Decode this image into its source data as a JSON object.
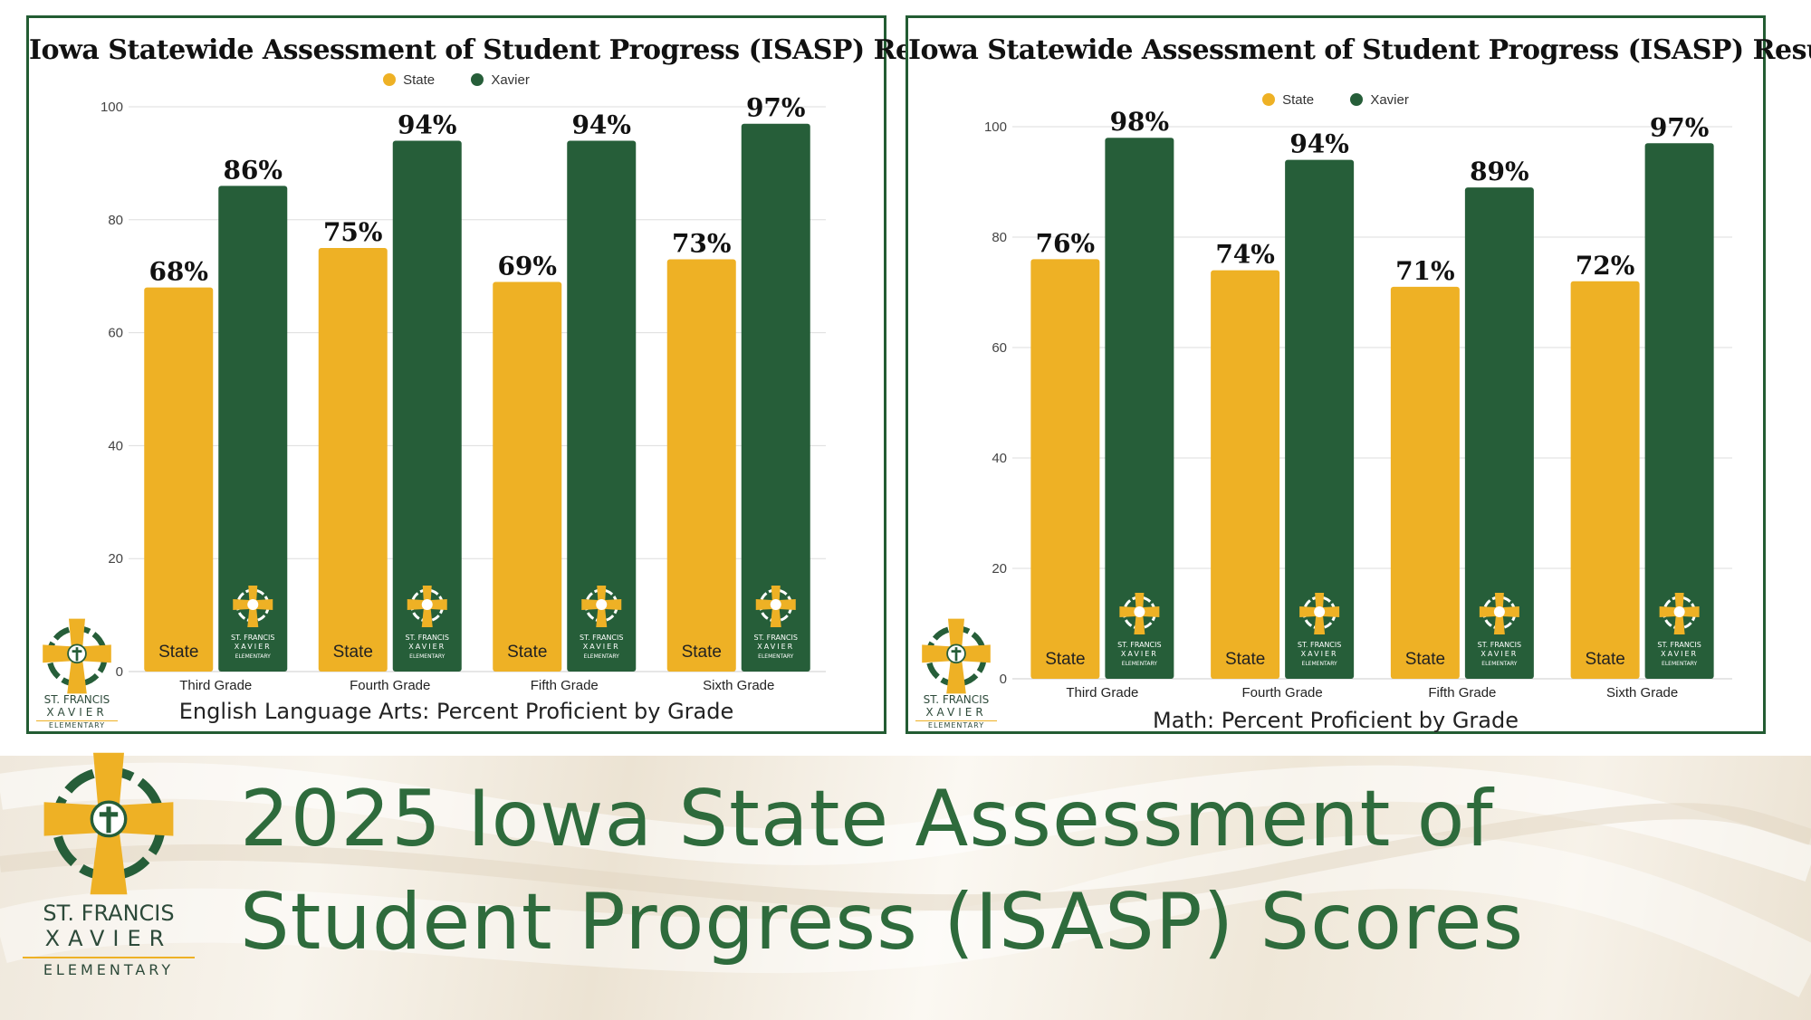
{
  "headline": {
    "line1": "2025 Iowa State Assessment of",
    "line2": "Student Progress (ISASP) Scores"
  },
  "logo": {
    "line1": "ST. FRANCIS",
    "line2": "XAVIER",
    "line3": "ELEMENTARY"
  },
  "colors": {
    "state": "#eeb125",
    "xavier": "#265e39",
    "grid": "#dddddd",
    "border": "#235c33",
    "headline": "#2e6b3c"
  },
  "chart_data": [
    {
      "type": "bar",
      "title": "Iowa Statewide Assessment of Student Progress (ISASP) Results",
      "subtitle": "English Language Arts: Percent Proficient by Grade",
      "categories": [
        "Third Grade",
        "Fourth Grade",
        "Fifth Grade",
        "Sixth Grade"
      ],
      "series": [
        {
          "name": "State",
          "values": [
            68,
            75,
            69,
            73
          ],
          "labels": [
            "68%",
            "75%",
            "69%",
            "73%"
          ],
          "bar_text": "State"
        },
        {
          "name": "Xavier",
          "values": [
            86,
            94,
            94,
            97
          ],
          "labels": [
            "86%",
            "94%",
            "94%",
            "97%"
          ]
        }
      ],
      "yticks": [
        "0",
        "20",
        "40",
        "60",
        "80",
        "100"
      ],
      "ylim": [
        0,
        100
      ],
      "legend": "top-center",
      "grid": true
    },
    {
      "type": "bar",
      "title": "Iowa Statewide Assessment of Student Progress (ISASP) Results",
      "subtitle": "Math: Percent Proficient by Grade",
      "categories": [
        "Third Grade",
        "Fourth Grade",
        "Fifth Grade",
        "Sixth Grade"
      ],
      "series": [
        {
          "name": "State",
          "values": [
            76,
            74,
            71,
            72
          ],
          "labels": [
            "76%",
            "74%",
            "71%",
            "72%"
          ],
          "bar_text": "State"
        },
        {
          "name": "Xavier",
          "values": [
            98,
            94,
            89,
            97
          ],
          "labels": [
            "98%",
            "94%",
            "89%",
            "97%"
          ]
        }
      ],
      "yticks": [
        "0",
        "20",
        "40",
        "60",
        "80",
        "100"
      ],
      "ylim": [
        0,
        100
      ],
      "legend": "top-center",
      "grid": true
    }
  ]
}
